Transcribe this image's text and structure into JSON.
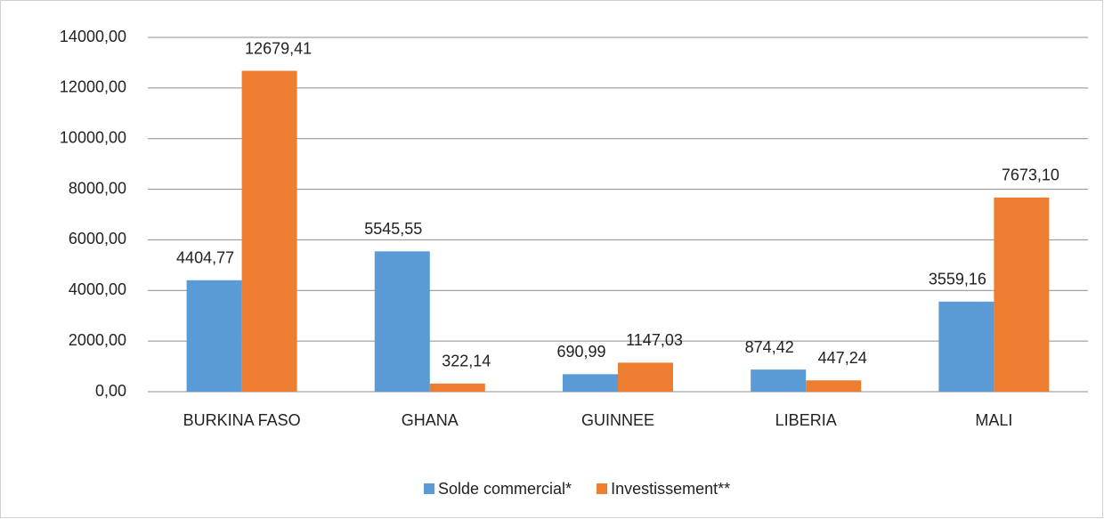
{
  "chart_data": {
    "type": "bar",
    "categories": [
      "BURKINA FASO",
      "GHANA",
      "GUINNEE",
      "LIBERIA",
      "MALI"
    ],
    "series": [
      {
        "name": "Solde commercial*",
        "color": "#5b9bd5",
        "values": [
          4404.77,
          5545.55,
          690.99,
          874.42,
          3559.16
        ],
        "value_labels": [
          "4404,77",
          "5545,55",
          "690,99",
          "874,42",
          "3559,16"
        ]
      },
      {
        "name": "Investissement**",
        "color": "#ed7d31",
        "values": [
          12679.41,
          322.14,
          1147.03,
          447.24,
          7673.1
        ],
        "value_labels": [
          "12679,41",
          "322,14",
          "1147,03",
          "447,24",
          "7673,10"
        ]
      }
    ],
    "ylim": [
      0,
      14000
    ],
    "yticks": [
      {
        "value": 0,
        "label": "0,00"
      },
      {
        "value": 2000,
        "label": "2000,00"
      },
      {
        "value": 4000,
        "label": "4000,00"
      },
      {
        "value": 6000,
        "label": "6000,00"
      },
      {
        "value": 8000,
        "label": "8000,00"
      },
      {
        "value": 10000,
        "label": "10000,00"
      },
      {
        "value": 12000,
        "label": "12000,00"
      },
      {
        "value": 14000,
        "label": "14000,00"
      }
    ],
    "grid": true,
    "legend": "bottom"
  }
}
